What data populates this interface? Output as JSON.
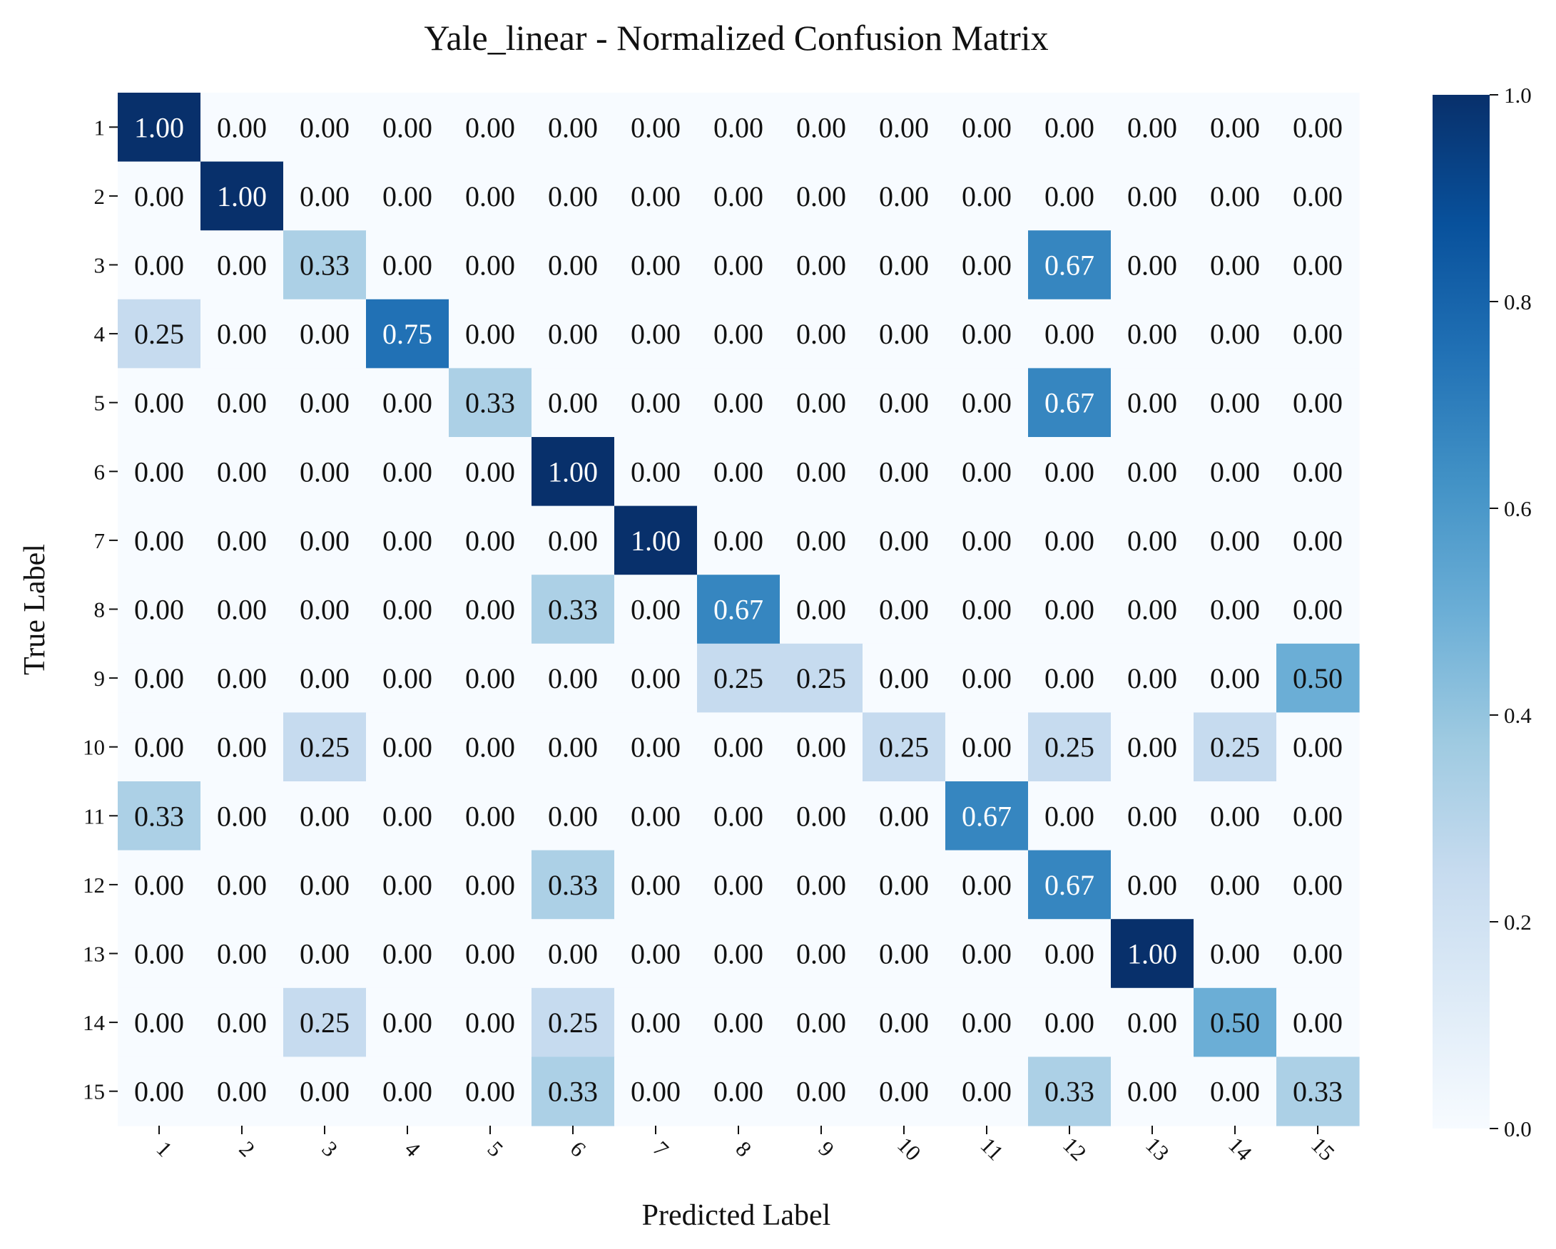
{
  "chart_data": {
    "type": "heatmap",
    "title": "Yale_linear - Normalized Confusion Matrix",
    "xlabel": "Predicted Label",
    "ylabel": "True Label",
    "x_categories": [
      "1",
      "2",
      "3",
      "4",
      "5",
      "6",
      "7",
      "8",
      "9",
      "10",
      "11",
      "12",
      "13",
      "14",
      "15"
    ],
    "y_categories": [
      "1",
      "2",
      "3",
      "4",
      "5",
      "6",
      "7",
      "8",
      "9",
      "10",
      "11",
      "12",
      "13",
      "14",
      "15"
    ],
    "value_format": "0.00",
    "colormap": "Blues",
    "colorbar": {
      "range": [
        0.0,
        1.0
      ],
      "ticks": [
        0.0,
        0.2,
        0.4,
        0.6,
        0.8,
        1.0
      ],
      "tick_labels": [
        "0.0",
        "0.2",
        "0.4",
        "0.6",
        "0.8",
        "1.0"
      ]
    },
    "values": [
      [
        1.0,
        0.0,
        0.0,
        0.0,
        0.0,
        0.0,
        0.0,
        0.0,
        0.0,
        0.0,
        0.0,
        0.0,
        0.0,
        0.0,
        0.0
      ],
      [
        0.0,
        1.0,
        0.0,
        0.0,
        0.0,
        0.0,
        0.0,
        0.0,
        0.0,
        0.0,
        0.0,
        0.0,
        0.0,
        0.0,
        0.0
      ],
      [
        0.0,
        0.0,
        0.33,
        0.0,
        0.0,
        0.0,
        0.0,
        0.0,
        0.0,
        0.0,
        0.0,
        0.67,
        0.0,
        0.0,
        0.0
      ],
      [
        0.25,
        0.0,
        0.0,
        0.75,
        0.0,
        0.0,
        0.0,
        0.0,
        0.0,
        0.0,
        0.0,
        0.0,
        0.0,
        0.0,
        0.0
      ],
      [
        0.0,
        0.0,
        0.0,
        0.0,
        0.33,
        0.0,
        0.0,
        0.0,
        0.0,
        0.0,
        0.0,
        0.67,
        0.0,
        0.0,
        0.0
      ],
      [
        0.0,
        0.0,
        0.0,
        0.0,
        0.0,
        1.0,
        0.0,
        0.0,
        0.0,
        0.0,
        0.0,
        0.0,
        0.0,
        0.0,
        0.0
      ],
      [
        0.0,
        0.0,
        0.0,
        0.0,
        0.0,
        0.0,
        1.0,
        0.0,
        0.0,
        0.0,
        0.0,
        0.0,
        0.0,
        0.0,
        0.0
      ],
      [
        0.0,
        0.0,
        0.0,
        0.0,
        0.0,
        0.33,
        0.0,
        0.67,
        0.0,
        0.0,
        0.0,
        0.0,
        0.0,
        0.0,
        0.0
      ],
      [
        0.0,
        0.0,
        0.0,
        0.0,
        0.0,
        0.0,
        0.0,
        0.25,
        0.25,
        0.0,
        0.0,
        0.0,
        0.0,
        0.0,
        0.5
      ],
      [
        0.0,
        0.0,
        0.25,
        0.0,
        0.0,
        0.0,
        0.0,
        0.0,
        0.0,
        0.25,
        0.0,
        0.25,
        0.0,
        0.25,
        0.0
      ],
      [
        0.33,
        0.0,
        0.0,
        0.0,
        0.0,
        0.0,
        0.0,
        0.0,
        0.0,
        0.0,
        0.67,
        0.0,
        0.0,
        0.0,
        0.0
      ],
      [
        0.0,
        0.0,
        0.0,
        0.0,
        0.0,
        0.33,
        0.0,
        0.0,
        0.0,
        0.0,
        0.0,
        0.67,
        0.0,
        0.0,
        0.0
      ],
      [
        0.0,
        0.0,
        0.0,
        0.0,
        0.0,
        0.0,
        0.0,
        0.0,
        0.0,
        0.0,
        0.0,
        0.0,
        1.0,
        0.0,
        0.0
      ],
      [
        0.0,
        0.0,
        0.25,
        0.0,
        0.0,
        0.25,
        0.0,
        0.0,
        0.0,
        0.0,
        0.0,
        0.0,
        0.0,
        0.5,
        0.0
      ],
      [
        0.0,
        0.0,
        0.0,
        0.0,
        0.0,
        0.33,
        0.0,
        0.0,
        0.0,
        0.0,
        0.0,
        0.33,
        0.0,
        0.0,
        0.33
      ]
    ]
  }
}
